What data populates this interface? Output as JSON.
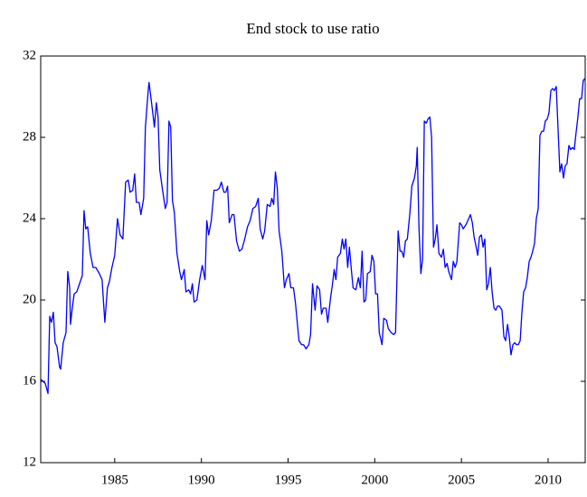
{
  "chart_data": {
    "type": "line",
    "title": "End stock to use ratio",
    "color": "#0000ff",
    "xlim": [
      1980.73,
      2012.14
    ],
    "xticks": [
      1985,
      1990,
      1995,
      2000,
      2005,
      2010
    ],
    "ylim": [
      12,
      32
    ],
    "yticks": [
      12,
      16,
      20,
      24,
      28,
      32
    ],
    "x": [
      1980.73,
      1980.99,
      1981.15,
      1981.25,
      1981.35,
      1981.46,
      1981.56,
      1981.67,
      1981.82,
      1981.88,
      1982.03,
      1982.19,
      1982.29,
      1982.4,
      1982.45,
      1982.55,
      1982.66,
      1982.81,
      1982.97,
      1983.13,
      1983.23,
      1983.33,
      1983.44,
      1983.59,
      1983.75,
      1983.91,
      1984.11,
      1984.27,
      1984.43,
      1984.58,
      1984.69,
      1984.84,
      1985.0,
      1985.16,
      1985.31,
      1985.47,
      1985.63,
      1985.78,
      1985.89,
      1986.04,
      1986.15,
      1986.25,
      1986.41,
      1986.51,
      1986.67,
      1986.77,
      1986.93,
      1986.98,
      1987.14,
      1987.29,
      1987.4,
      1987.5,
      1987.6,
      1987.76,
      1987.92,
      1988.02,
      1988.13,
      1988.23,
      1988.33,
      1988.44,
      1988.59,
      1988.75,
      1988.85,
      1989.01,
      1989.11,
      1989.27,
      1989.38,
      1989.48,
      1989.58,
      1989.74,
      1989.9,
      1990.05,
      1990.21,
      1990.31,
      1990.42,
      1990.57,
      1990.73,
      1990.89,
      1991.04,
      1991.15,
      1991.3,
      1991.41,
      1991.51,
      1991.61,
      1991.77,
      1991.88,
      1992.03,
      1992.19,
      1992.34,
      1992.5,
      1992.66,
      1992.81,
      1992.97,
      1993.13,
      1993.28,
      1993.39,
      1993.54,
      1993.65,
      1993.8,
      1993.96,
      1994.06,
      1994.17,
      1994.27,
      1994.38,
      1994.48,
      1994.64,
      1994.79,
      1994.9,
      1995.05,
      1995.16,
      1995.31,
      1995.42,
      1995.52,
      1995.63,
      1995.78,
      1995.89,
      1996.04,
      1996.2,
      1996.3,
      1996.41,
      1996.56,
      1996.67,
      1996.82,
      1996.93,
      1997.03,
      1997.19,
      1997.29,
      1997.45,
      1997.55,
      1997.66,
      1997.76,
      1997.86,
      1998.02,
      1998.13,
      1998.23,
      1998.33,
      1998.44,
      1998.54,
      1998.65,
      1998.75,
      1998.91,
      1999.06,
      1999.17,
      1999.27,
      1999.38,
      1999.48,
      1999.58,
      1999.74,
      1999.84,
      1999.95,
      2000.05,
      2000.16,
      2000.26,
      2000.42,
      2000.52,
      2000.68,
      2000.78,
      2000.94,
      2001.09,
      2001.2,
      2001.35,
      2001.46,
      2001.56,
      2001.67,
      2001.77,
      2001.88,
      2002.03,
      2002.14,
      2002.29,
      2002.4,
      2002.45,
      2002.55,
      2002.66,
      2002.76,
      2002.86,
      2002.97,
      2003.07,
      2003.18,
      2003.28,
      2003.39,
      2003.49,
      2003.59,
      2003.7,
      2003.85,
      2003.96,
      2004.06,
      2004.17,
      2004.27,
      2004.43,
      2004.53,
      2004.64,
      2004.74,
      2004.9,
      2005.0,
      2005.1,
      2005.26,
      2005.42,
      2005.52,
      2005.63,
      2005.73,
      2005.83,
      2005.94,
      2006.04,
      2006.15,
      2006.25,
      2006.35,
      2006.46,
      2006.56,
      2006.67,
      2006.77,
      2006.88,
      2006.98,
      2007.08,
      2007.19,
      2007.34,
      2007.45,
      2007.55,
      2007.66,
      2007.76,
      2007.86,
      2007.97,
      2008.07,
      2008.18,
      2008.28,
      2008.39,
      2008.49,
      2008.59,
      2008.7,
      2008.8,
      2008.91,
      2009.01,
      2009.11,
      2009.22,
      2009.32,
      2009.43,
      2009.53,
      2009.64,
      2009.74,
      2009.84,
      2009.95,
      2010.05,
      2010.16,
      2010.26,
      2010.36,
      2010.47,
      2010.57,
      2010.68,
      2010.78,
      2010.89,
      2010.99,
      2011.09,
      2011.2,
      2011.3,
      2011.41,
      2011.51,
      2011.61,
      2011.72,
      2011.82,
      2011.93,
      2012.03,
      2012.14
    ],
    "values": [
      16.1,
      15.9,
      15.4,
      19.2,
      18.9,
      19.4,
      17.9,
      17.7,
      16.7,
      16.6,
      17.9,
      18.4,
      21.4,
      20.6,
      18.8,
      19.6,
      20.3,
      20.4,
      20.8,
      21.2,
      24.4,
      23.5,
      23.6,
      22.3,
      21.6,
      21.6,
      21.3,
      21.0,
      18.9,
      20.6,
      20.9,
      21.6,
      22.2,
      24.0,
      23.2,
      23.0,
      25.8,
      25.9,
      25.3,
      25.4,
      26.2,
      24.8,
      24.8,
      24.2,
      25.0,
      28.5,
      30.3,
      30.7,
      29.6,
      28.5,
      29.7,
      29.0,
      26.4,
      25.4,
      24.5,
      24.8,
      28.8,
      28.5,
      24.9,
      24.3,
      22.3,
      21.4,
      21.0,
      21.5,
      20.4,
      20.5,
      20.3,
      20.8,
      19.9,
      20.0,
      21.0,
      21.7,
      21.0,
      23.9,
      23.2,
      23.9,
      25.4,
      25.4,
      25.5,
      25.8,
      25.3,
      25.3,
      25.6,
      23.8,
      24.2,
      24.2,
      22.9,
      22.4,
      22.5,
      23.0,
      23.6,
      23.9,
      24.5,
      24.6,
      25.0,
      23.5,
      23.0,
      23.4,
      24.7,
      24.6,
      25.0,
      24.7,
      26.3,
      25.5,
      23.4,
      22.4,
      20.6,
      21.0,
      21.3,
      20.6,
      20.6,
      19.9,
      19.0,
      18.0,
      17.8,
      17.8,
      17.6,
      17.8,
      18.3,
      20.8,
      19.5,
      20.7,
      20.5,
      19.3,
      19.6,
      19.6,
      18.9,
      20.1,
      20.7,
      21.5,
      21.0,
      22.1,
      22.3,
      23.0,
      22.5,
      23.0,
      21.6,
      22.6,
      21.5,
      20.6,
      20.5,
      21.1,
      20.6,
      22.4,
      19.9,
      20.0,
      21.3,
      21.4,
      22.2,
      21.9,
      20.3,
      20.3,
      18.4,
      17.8,
      19.1,
      19.0,
      18.6,
      18.4,
      18.3,
      18.4,
      23.4,
      22.4,
      22.4,
      22.1,
      22.9,
      23.0,
      24.3,
      25.6,
      26.0,
      26.6,
      27.5,
      23.6,
      21.3,
      22.0,
      28.8,
      28.7,
      28.9,
      29.0,
      28.0,
      22.6,
      23.0,
      23.7,
      22.3,
      22.1,
      22.5,
      21.6,
      21.8,
      21.4,
      21.0,
      21.9,
      21.6,
      21.9,
      23.8,
      23.7,
      23.5,
      23.7,
      24.0,
      24.2,
      23.8,
      23.1,
      22.7,
      22.2,
      23.1,
      23.2,
      22.6,
      23.0,
      20.5,
      20.8,
      21.6,
      20.4,
      19.6,
      19.5,
      19.7,
      19.7,
      19.5,
      18.2,
      18.0,
      18.8,
      18.2,
      17.3,
      17.8,
      17.9,
      17.8,
      17.8,
      18.0,
      19.4,
      20.4,
      20.6,
      21.1,
      21.9,
      22.1,
      22.4,
      22.8,
      24.0,
      24.5,
      28.1,
      28.3,
      28.3,
      28.8,
      28.9,
      29.2,
      30.3,
      30.4,
      30.3,
      30.5,
      28.5,
      26.3,
      26.7,
      26.0,
      26.6,
      26.7,
      27.6,
      27.4,
      27.5,
      27.4,
      28.2,
      29.0,
      29.9,
      29.9,
      30.8,
      30.9
    ]
  }
}
